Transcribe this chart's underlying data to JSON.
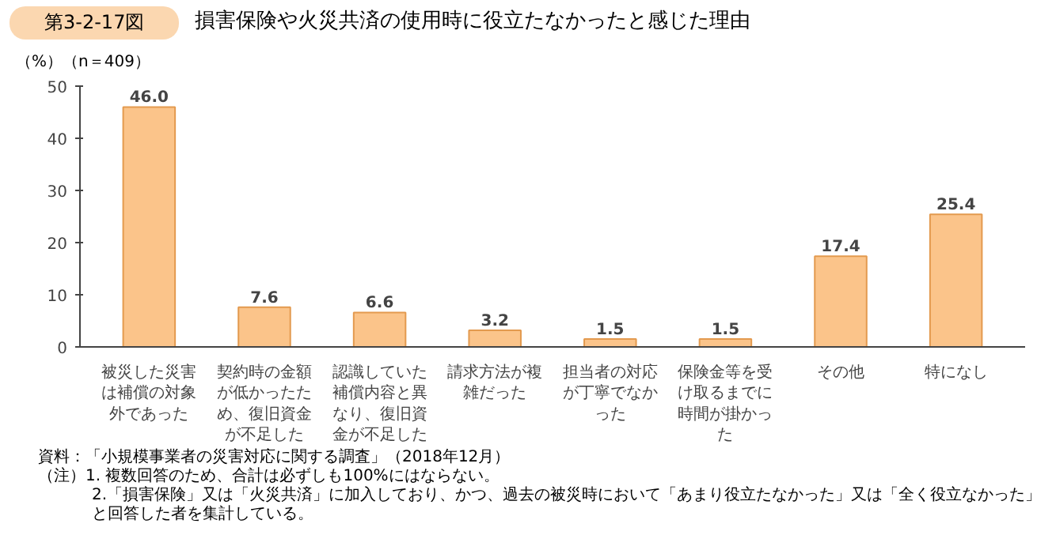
{
  "chart_data": {
    "type": "bar",
    "title": "損害保険や火災共済の使用時に役立たなかったと感じた理由",
    "subtitle": "第3-2-17図",
    "ylabel": "（%）",
    "categories": [
      "被災した災害は補償の対象外であった",
      "契約時の金額が低かったため、復旧資金が不足した",
      "認識していた補償内容と異なり、復旧資金が不足した",
      "請求方法が複雑だった",
      "担当者の対応が丁寧でなかった",
      "保険金等を受け取るまでに時間が掛かった",
      "その他",
      "特になし"
    ],
    "values": [
      46.0,
      7.6,
      6.6,
      3.2,
      1.5,
      1.5,
      17.4,
      25.4
    ],
    "value_labels": [
      "46.0",
      "7.6",
      "6.6",
      "3.2",
      "1.5",
      "1.5",
      "17.4",
      "25.4"
    ],
    "color": "#fbc48a",
    "ylim": [
      0,
      50
    ],
    "yticks": [
      0,
      10,
      20,
      30,
      40,
      50
    ],
    "grid": false,
    "annotations": [
      "（n＝409）",
      "資料：「小規模事業者の災害対応に関する調査」（2018年12月）",
      "（注）1. 複数回答のため、合計は必ずしも100%にはならない。",
      "2.「損害保険」又は「火災共済」に加入しており、かつ、過去の被災時において「あまり役立たなかった」又は「全く役立なかった」と回答した者を集計している。"
    ]
  }
}
